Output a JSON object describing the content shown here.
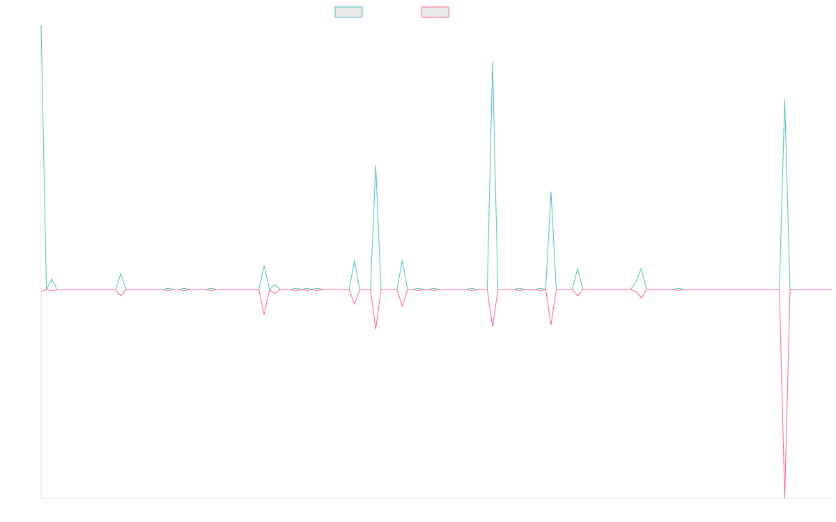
{
  "chart_data": {
    "type": "line",
    "title": "",
    "xlabel": "",
    "ylabel": "",
    "grid": false,
    "legend_position": "top-center",
    "x_count": 150,
    "ylim": [
      -100,
      100
    ],
    "series": [
      {
        "label": "",
        "color": "#4bc0c0",
        "fill": "rgba(230,230,230,0.9)",
        "points": [
          [
            0,
            100
          ],
          [
            2,
            4
          ],
          [
            15,
            6
          ],
          [
            24,
            0.5
          ],
          [
            27,
            0.5
          ],
          [
            32,
            0.5
          ],
          [
            42,
            9
          ],
          [
            44,
            2
          ],
          [
            48,
            0.5
          ],
          [
            50,
            0.5
          ],
          [
            52,
            0.5
          ],
          [
            59,
            11
          ],
          [
            63,
            47
          ],
          [
            68,
            11
          ],
          [
            71,
            0.5
          ],
          [
            74,
            0.5
          ],
          [
            81,
            0.5
          ],
          [
            85,
            86
          ],
          [
            90,
            0.5
          ],
          [
            94,
            0.5
          ],
          [
            96,
            37
          ],
          [
            101,
            8
          ],
          [
            112,
            3
          ],
          [
            113,
            8
          ],
          [
            120,
            0.5
          ],
          [
            140,
            72
          ]
        ]
      },
      {
        "label": "",
        "color": "#ff6384",
        "fill": "rgba(230,230,230,0.9)",
        "points": [
          [
            0,
            -1
          ],
          [
            2,
            -0.5
          ],
          [
            15,
            -3
          ],
          [
            24,
            -0.5
          ],
          [
            27,
            -0.5
          ],
          [
            32,
            -0.5
          ],
          [
            42,
            -12
          ],
          [
            44,
            -2
          ],
          [
            48,
            -0.5
          ],
          [
            50,
            -0.5
          ],
          [
            52,
            -0.5
          ],
          [
            59,
            -7
          ],
          [
            63,
            -19
          ],
          [
            68,
            -8
          ],
          [
            71,
            -0.5
          ],
          [
            74,
            -0.5
          ],
          [
            81,
            -0.5
          ],
          [
            85,
            -18
          ],
          [
            90,
            -0.5
          ],
          [
            94,
            -0.5
          ],
          [
            96,
            -17
          ],
          [
            101,
            -3
          ],
          [
            112,
            -1
          ],
          [
            113,
            -4
          ],
          [
            120,
            -0.5
          ],
          [
            140,
            -100
          ]
        ]
      }
    ]
  }
}
